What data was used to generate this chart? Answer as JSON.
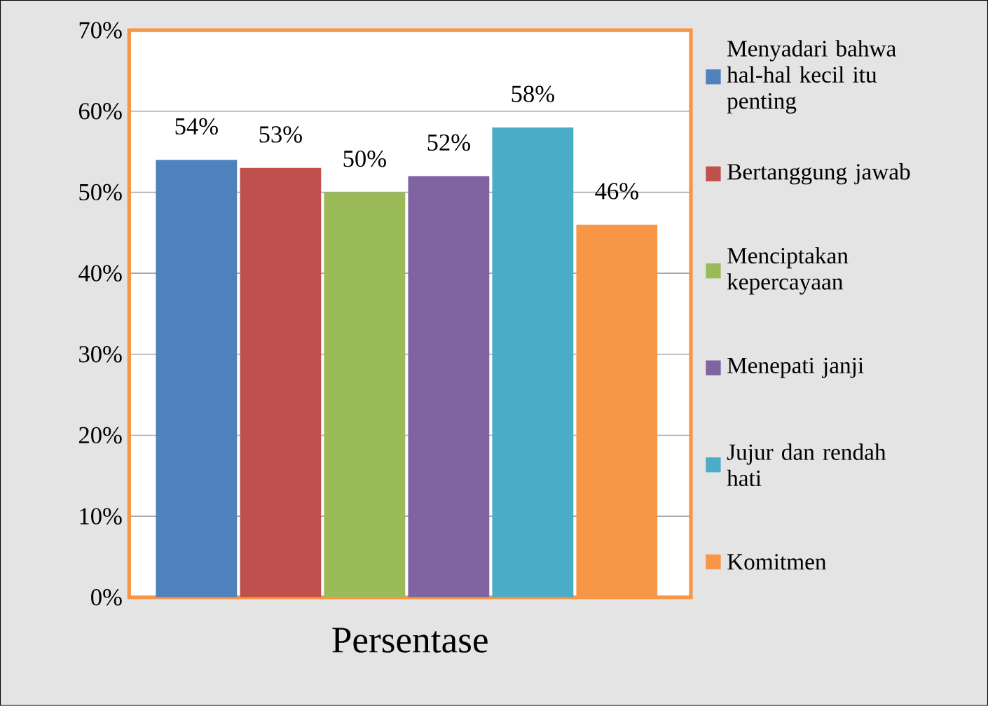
{
  "chart_data": {
    "type": "bar",
    "categories": [
      null,
      null,
      null,
      null,
      null,
      null
    ],
    "xlabel": "Persentase",
    "series": [
      {
        "name": "Menyadari bahwa hal-hal kecil itu penting",
        "color": "#4f81bd",
        "values": [
          54,
          null,
          null,
          null,
          null,
          null
        ],
        "value_labels": [
          "54%",
          null,
          null,
          null,
          null,
          null
        ]
      },
      {
        "name": "Bertanggung jawab",
        "color": "#c0504d",
        "values": [
          null,
          53,
          null,
          null,
          null,
          null
        ],
        "value_labels": [
          null,
          "53%",
          null,
          null,
          null,
          null
        ]
      },
      {
        "name": "Menciptakan kepercayaan",
        "color": "#9bbb59",
        "values": [
          null,
          null,
          50,
          null,
          null,
          null
        ],
        "value_labels": [
          null,
          null,
          "50%",
          null,
          null,
          null
        ]
      },
      {
        "name": "Menepati janji",
        "color": "#8064a2",
        "values": [
          null,
          null,
          null,
          52,
          null,
          null
        ],
        "value_labels": [
          null,
          null,
          null,
          "52%",
          null,
          null
        ]
      },
      {
        "name": "Jujur dan rendah hati",
        "color": "#4bacc6",
        "values": [
          null,
          null,
          null,
          null,
          58,
          null
        ],
        "value_labels": [
          null,
          null,
          null,
          null,
          "58%",
          null
        ]
      },
      {
        "name": "Komitmen",
        "color": "#f79646",
        "values": [
          null,
          null,
          null,
          null,
          null,
          46
        ],
        "value_labels": [
          null,
          null,
          null,
          null,
          null,
          "46%"
        ]
      }
    ],
    "ylim": [
      0,
      70
    ],
    "yticks": [
      {
        "value": 0,
        "label": "0%"
      },
      {
        "value": 10,
        "label": "10%"
      },
      {
        "value": 20,
        "label": "20%"
      },
      {
        "value": 30,
        "label": "30%"
      },
      {
        "value": 40,
        "label": "40%"
      },
      {
        "value": 50,
        "label": "50%"
      },
      {
        "value": 60,
        "label": "60%"
      },
      {
        "value": 70,
        "label": "70%"
      }
    ],
    "grid": "y",
    "legend": "right"
  }
}
